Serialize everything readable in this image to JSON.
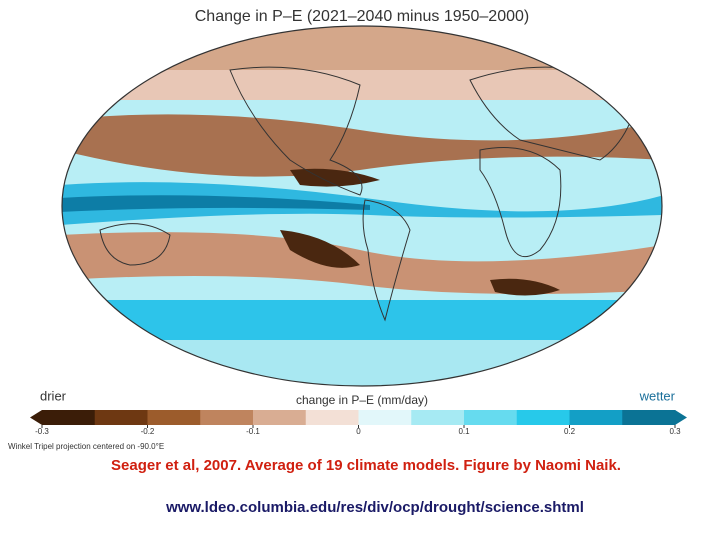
{
  "title": "Change in P–E  (2021–2040 minus 1950–2000)",
  "colorbar": {
    "label": "change in P–E (mm/day)",
    "left_label": "drier",
    "right_label": "wetter",
    "lim": [
      -0.3,
      0.3
    ],
    "ticks": [
      -0.3,
      -0.2,
      -0.1,
      0,
      0.1,
      0.2,
      0.3
    ],
    "colors": [
      "#3b1d08",
      "#6e3812",
      "#9c5c2c",
      "#bf845e",
      "#d9ad93",
      "#f3e0d6",
      "#e2f7fa",
      "#a6eaf3",
      "#66dbef",
      "#27c9ea",
      "#139fc6",
      "#0b7395"
    ]
  },
  "projection_note": "Winkel Tripel projection centered on -90.0°E",
  "caption": "Seager et al, 2007.  Average of 19 climate models.  Figure by Naomi Naik.",
  "url": "www.ldeo.columbia.edu/res/div/ocp/drought/science.shtml"
}
